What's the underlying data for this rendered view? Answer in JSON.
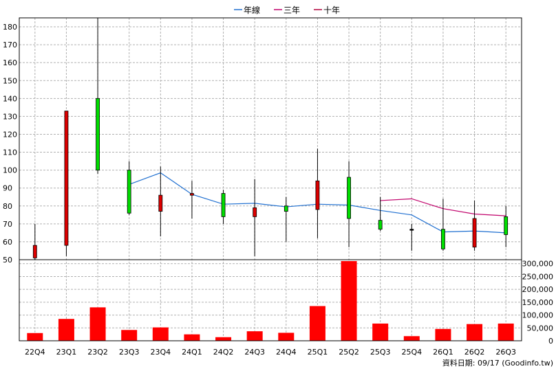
{
  "colors": {
    "candle_up": "#00dd00",
    "candle_down": "#dd0000",
    "wick": "#000000",
    "volume": "#ff0000",
    "line_year": "#1f6fd0",
    "line_3y": "#c0006a",
    "line_10y": "#b0003a",
    "grid": "#b0b0b0",
    "border": "#000000"
  },
  "legend": [
    {
      "label": "年線",
      "color": "#1f6fd0"
    },
    {
      "label": "三年",
      "color": "#c0006a"
    },
    {
      "label": "十年",
      "color": "#b0003a"
    }
  ],
  "footer": "資料日期: 09/17  (Goodinfo.tw)",
  "chart_data": [
    {
      "type": "candlestick",
      "categories": [
        "22Q4",
        "23Q1",
        "23Q2",
        "23Q3",
        "23Q4",
        "24Q1",
        "24Q2",
        "24Q3",
        "24Q4",
        "25Q1",
        "25Q2",
        "25Q3",
        "25Q4",
        "26Q1",
        "26Q2",
        "26Q3"
      ],
      "ylim": [
        50,
        185
      ],
      "yticks": [
        50,
        60,
        70,
        80,
        90,
        100,
        110,
        120,
        130,
        140,
        150,
        160,
        170,
        180
      ],
      "grid": true,
      "candles": [
        {
          "open": 58,
          "close": 51,
          "high": 70,
          "low": 50
        },
        {
          "open": 133,
          "close": 58,
          "high": 133,
          "low": 52
        },
        {
          "open": 100,
          "close": 140,
          "high": 185,
          "low": 98
        },
        {
          "open": 76,
          "close": 100,
          "high": 105,
          "low": 75
        },
        {
          "open": 86,
          "close": 77,
          "high": 102,
          "low": 63
        },
        {
          "open": 87,
          "close": 86,
          "high": 94,
          "low": 73
        },
        {
          "open": 74,
          "close": 87,
          "high": 89,
          "low": 70
        },
        {
          "open": 79,
          "close": 74,
          "high": 95,
          "low": 52
        },
        {
          "open": 77,
          "close": 80,
          "high": 85,
          "low": 60
        },
        {
          "open": 94,
          "close": 78,
          "high": 112,
          "low": 62
        },
        {
          "open": 73,
          "close": 96,
          "high": 105,
          "low": 57
        },
        {
          "open": 67,
          "close": 72,
          "high": 85,
          "low": 66
        },
        {
          "open": 67,
          "close": 67,
          "high": 70,
          "low": 55
        },
        {
          "open": 56,
          "close": 67,
          "high": 84,
          "low": 55
        },
        {
          "open": 73,
          "close": 57,
          "high": 83,
          "low": 55
        },
        {
          "open": 64,
          "close": 74,
          "high": 80,
          "low": 57
        }
      ],
      "series": [
        {
          "name": "年線",
          "values": [
            null,
            null,
            null,
            92,
            98.5,
            86.5,
            81,
            81.5,
            79.5,
            81,
            80.5,
            77.5,
            75,
            65.5,
            66,
            65
          ]
        },
        {
          "name": "三年",
          "values": [
            null,
            null,
            null,
            null,
            null,
            null,
            null,
            null,
            null,
            null,
            null,
            83,
            84,
            78.5,
            75.5,
            74.5
          ]
        },
        {
          "name": "十年",
          "values": [
            null,
            null,
            null,
            null,
            null,
            null,
            null,
            null,
            null,
            null,
            null,
            null,
            null,
            null,
            null,
            null
          ]
        }
      ]
    },
    {
      "type": "bar",
      "categories": [
        "22Q4",
        "23Q1",
        "23Q2",
        "23Q3",
        "23Q4",
        "24Q1",
        "24Q2",
        "24Q3",
        "24Q4",
        "25Q1",
        "25Q2",
        "25Q3",
        "25Q4",
        "26Q1",
        "26Q2",
        "26Q3"
      ],
      "values": [
        30000,
        85000,
        130000,
        42000,
        52000,
        25000,
        14000,
        37000,
        31000,
        135000,
        310000,
        67000,
        18000,
        46000,
        65000,
        67000
      ],
      "ylim": [
        0,
        310000
      ],
      "yticks": [
        0,
        50000,
        100000,
        150000,
        200000,
        250000,
        300000
      ],
      "ytick_labels": [
        "0",
        "50,000",
        "100,000",
        "150,000",
        "200,000",
        "250,000",
        "300,000"
      ],
      "grid": true
    }
  ]
}
